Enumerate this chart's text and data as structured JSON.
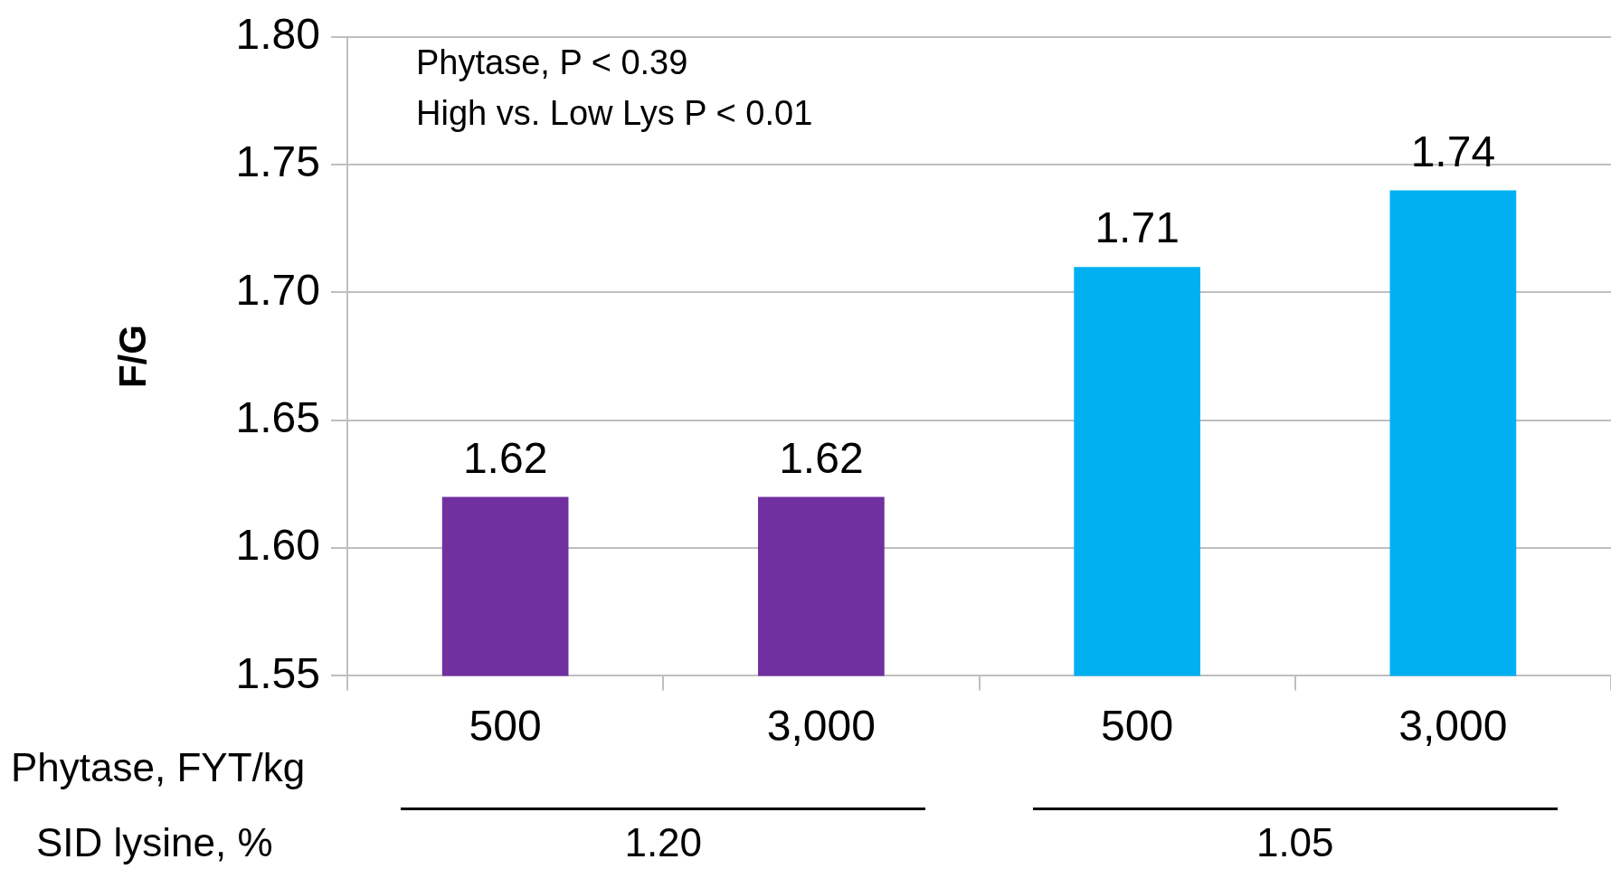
{
  "chart_data": {
    "type": "bar",
    "ylabel": "F/G",
    "xlabel": "Phytase, FYT/kg",
    "categories": [
      "500",
      "3,000",
      "500",
      "3,000"
    ],
    "values": [
      1.62,
      1.62,
      1.71,
      1.74
    ],
    "colors": [
      "#7030a0",
      "#7030a0",
      "#00b0f0",
      "#00b0f0"
    ],
    "ylim": [
      1.55,
      1.8
    ],
    "yticks": [
      {
        "value": 1.55,
        "label": "1.55"
      },
      {
        "value": 1.6,
        "label": "1.60"
      },
      {
        "value": 1.65,
        "label": "1.65"
      },
      {
        "value": 1.7,
        "label": "1.70"
      },
      {
        "value": 1.75,
        "label": "1.75"
      },
      {
        "value": 1.8,
        "label": "1.80"
      }
    ],
    "grid": "y",
    "data_labels": true,
    "legend": false,
    "annotations": [
      "Phytase, P < 0.39",
      "High vs. Low Lys P < 0.01",
      "SID lysine, %",
      "1.20",
      "1.05"
    ]
  }
}
